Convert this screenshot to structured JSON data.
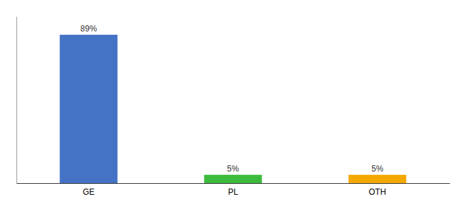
{
  "chart_data": {
    "type": "bar",
    "categories": [
      "GE",
      "PL",
      "OTH"
    ],
    "values": [
      89,
      5,
      5
    ],
    "value_labels": [
      "89%",
      "5%",
      "5%"
    ],
    "colors": [
      "#4472C4",
      "#3DBB3D",
      "#F5A800"
    ],
    "ylim": [
      0,
      100
    ],
    "data_labels": true,
    "tick_labels": "x"
  }
}
